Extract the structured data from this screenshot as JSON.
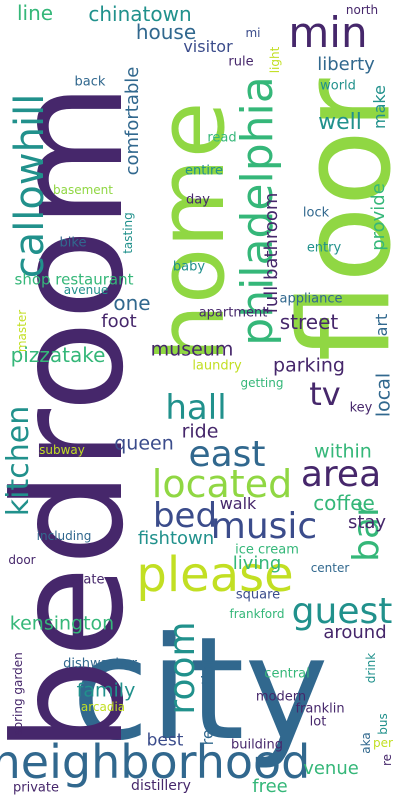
{
  "colors": {
    "background": "#ffffff",
    "indigo": "#46276b",
    "navy": "#3b4c8b",
    "steel": "#31688e",
    "teal": "#21918c",
    "green": "#35b779",
    "lime": "#90d743",
    "yellowgreen": "#c2df23"
  },
  "words": {
    "city": "city",
    "bedroom": "bedroom",
    "floor": "floor",
    "home": "home",
    "neighborhood": "neighborhood",
    "please": "please",
    "philadelphia": "philadelphia",
    "callowhill": "callowhill",
    "min": "min",
    "bar": "bar",
    "located": "located",
    "music": "music",
    "east": "east",
    "area": "area",
    "guest": "guest",
    "room": "room",
    "hall": "hall",
    "bed": "bed",
    "tv": "tv",
    "kitchen": "kitchen",
    "chinatown": "chinatown",
    "line": "line",
    "house": "house",
    "mi": "mi",
    "north": "north",
    "visitor": "visitor",
    "liberty": "liberty",
    "rule": "rule",
    "back": "back",
    "world": "world",
    "light": "light",
    "comfortable": "comfortable",
    "well": "well",
    "make": "make",
    "read": "read",
    "entire": "entire",
    "basement": "basement",
    "day": "day",
    "tasting": "tasting",
    "bike": "bike",
    "full_bathroom": "full bathroom",
    "lock": "lock",
    "entry": "entry",
    "provide": "provide",
    "baby": "baby",
    "shop_restaurant": "shop restaurant",
    "avenue": "avenue",
    "appliance": "appliance",
    "master": "master",
    "one": "one",
    "apartment": "apartment",
    "foot": "foot",
    "street": "street",
    "art": "art",
    "pizzatake": "pizzatake",
    "museum": "museum",
    "laundry": "laundry",
    "parking": "parking",
    "local": "local",
    "getting": "getting",
    "key": "key",
    "ride": "ride",
    "queen": "queen",
    "within": "within",
    "subway": "subway",
    "walk": "walk",
    "coffee": "coffee",
    "including": "including",
    "fishtown": "fishtown",
    "stay": "stay",
    "ice_cream": "ice cream",
    "door": "door",
    "center": "center",
    "living": "living",
    "state": "state",
    "square": "square",
    "frankford": "frankford",
    "kensington": "kensington",
    "around": "around",
    "dishwasher": "dishwasher",
    "drink": "drink",
    "central": "central",
    "family": "family",
    "spring_garden": "spring garden",
    "reservation": "reservation",
    "modern": "modern",
    "arcadia": "arcadia",
    "franklin": "franklin",
    "lot": "lot",
    "bus": "bus",
    "best": "best",
    "building": "building",
    "aka": "aka",
    "per": "per",
    "re": "re",
    "venue": "venue",
    "private": "private",
    "distillery": "distillery",
    "free": "free"
  }
}
